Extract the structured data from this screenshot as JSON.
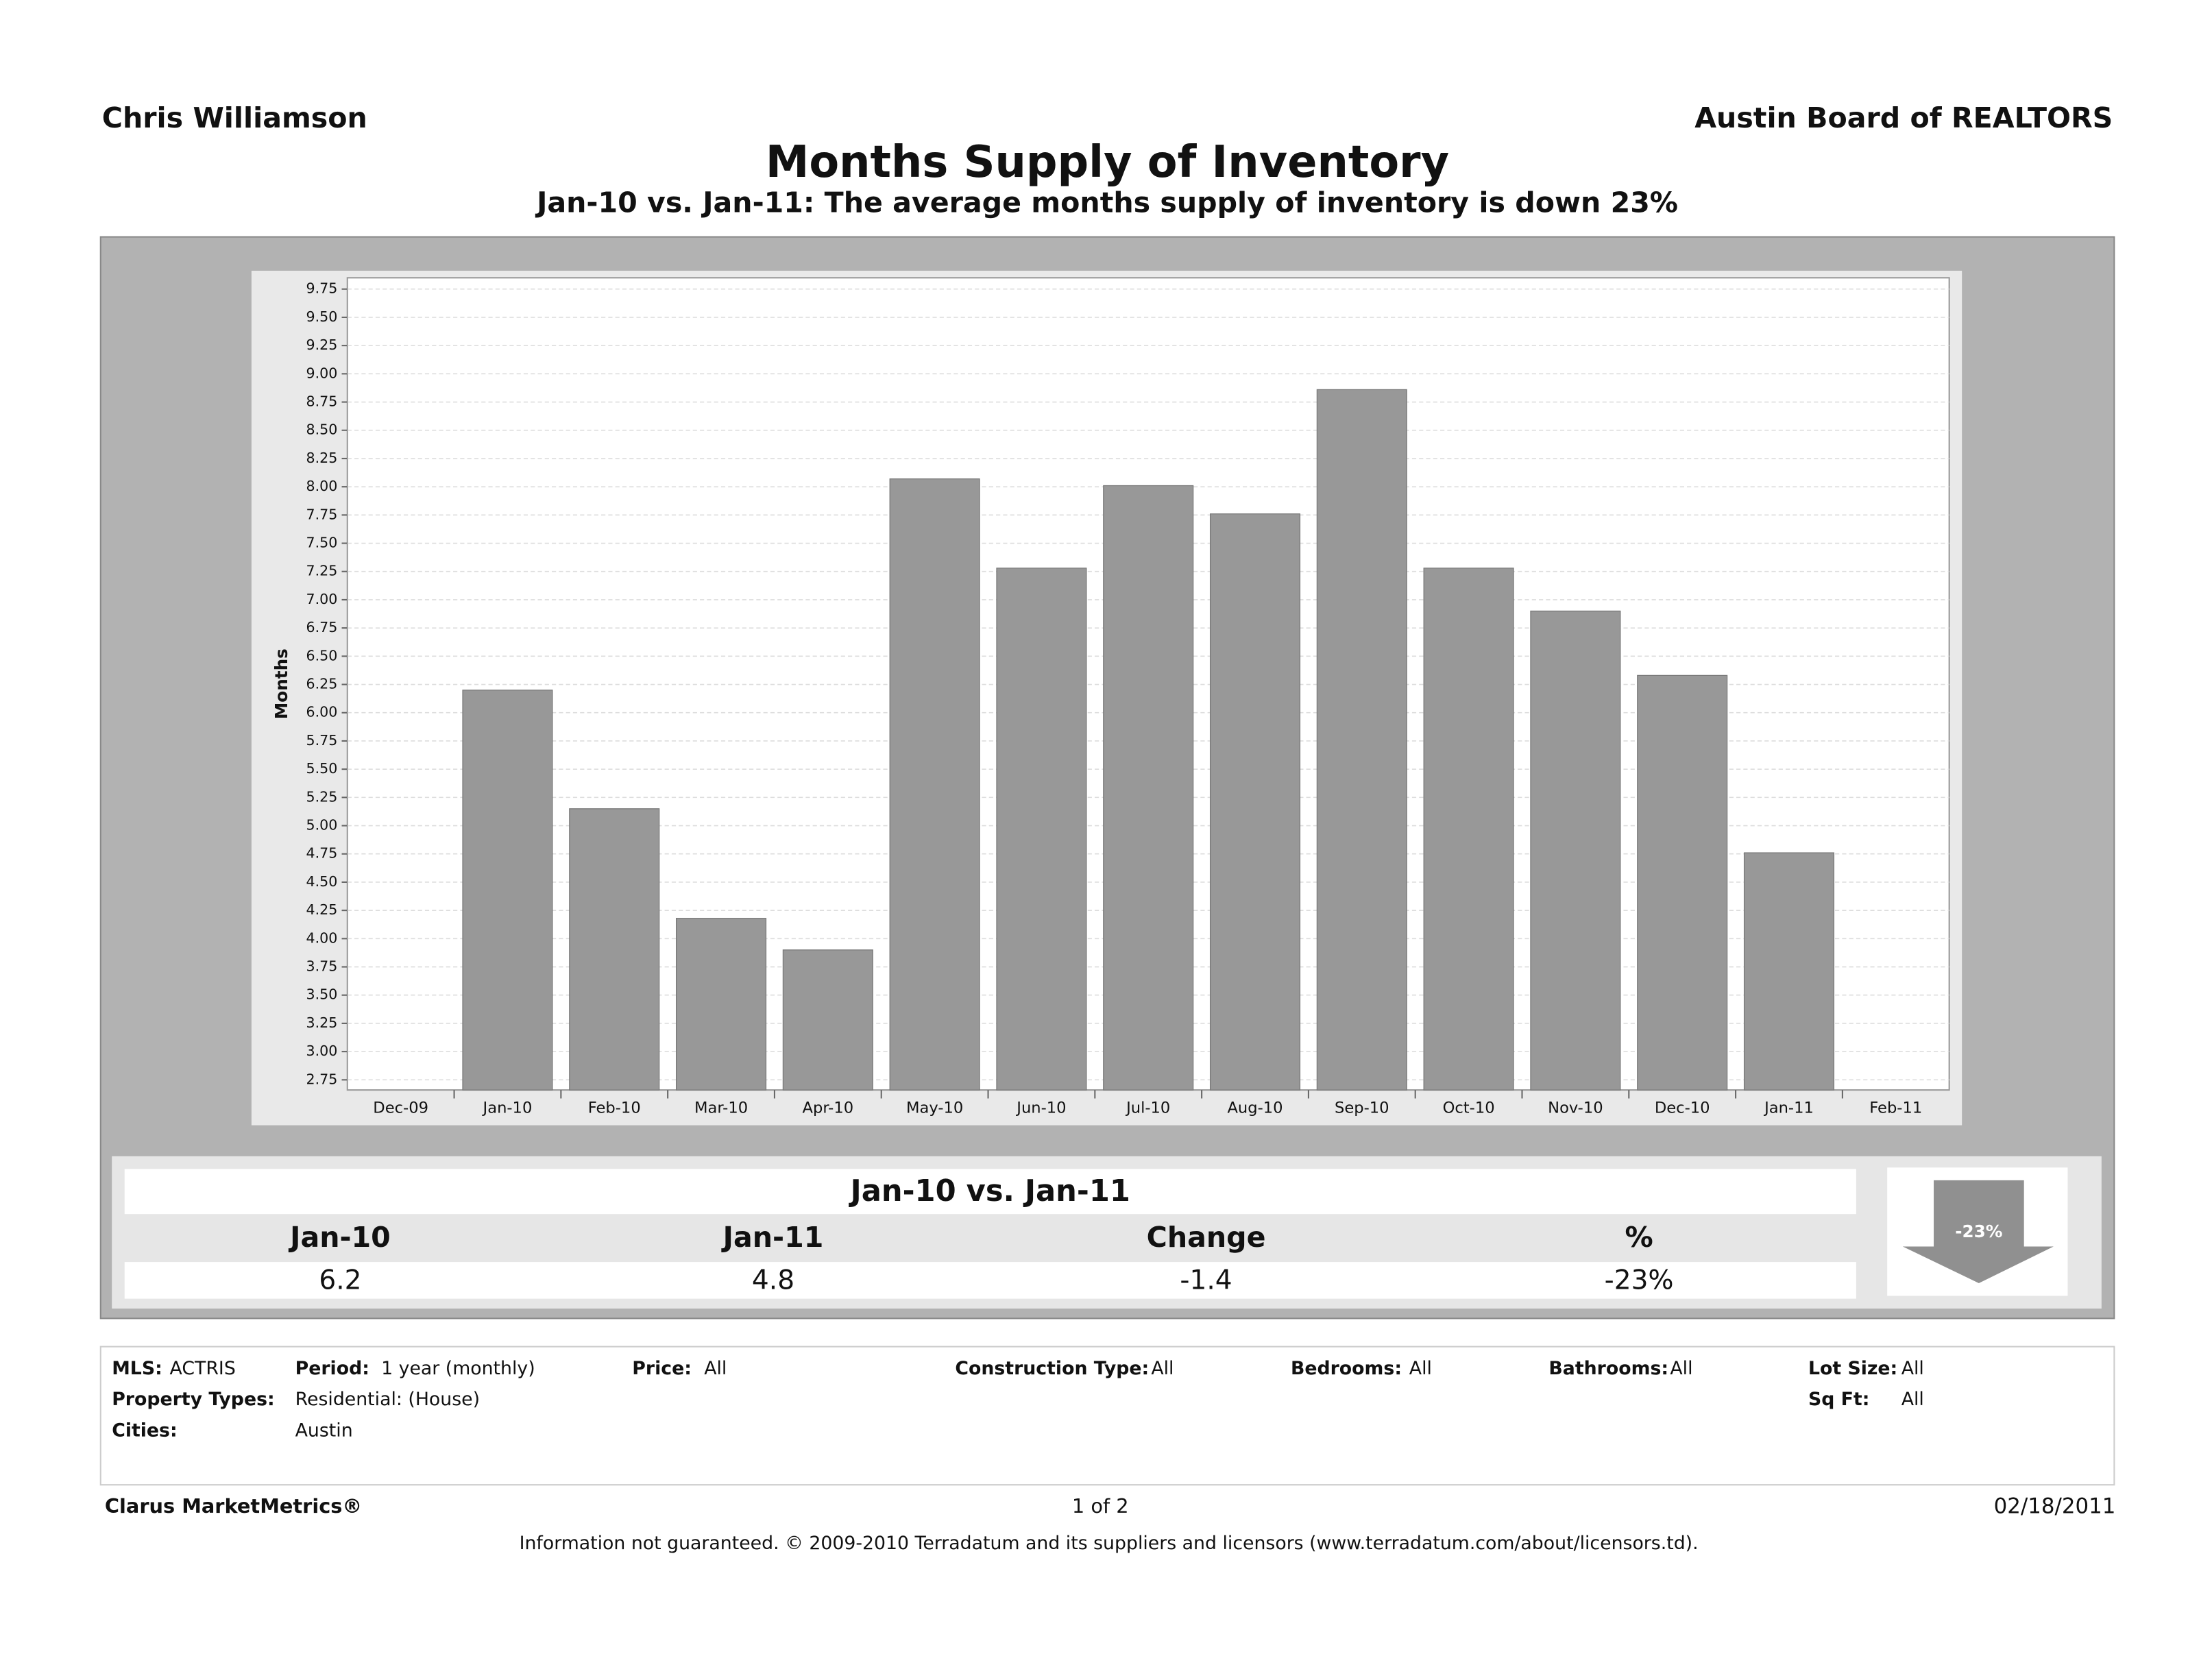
{
  "header": {
    "agent": "Chris Williamson",
    "board": "Austin Board of REALTORS"
  },
  "chart_data": {
    "type": "bar",
    "title": "Months Supply of Inventory",
    "subtitle": "Jan-10 vs. Jan-11:  The average months supply of inventory is down 23%",
    "y_label": "Months",
    "categories": [
      "Dec-09",
      "Jan-10",
      "Feb-10",
      "Mar-10",
      "Apr-10",
      "May-10",
      "Jun-10",
      "Jul-10",
      "Aug-10",
      "Sep-10",
      "Oct-10",
      "Nov-10",
      "Dec-10",
      "Jan-11",
      "Feb-11"
    ],
    "values": [
      null,
      6.2,
      5.15,
      4.18,
      3.9,
      8.07,
      7.28,
      8.01,
      7.76,
      8.86,
      7.28,
      6.9,
      6.33,
      4.76,
      null
    ],
    "color": "#989898",
    "ylim": [
      2.66,
      9.85
    ],
    "yticks": [
      2.75,
      {
        "value": 3,
        "label": "3.00"
      },
      3.25,
      {
        "value": 3.5,
        "label": "3.50"
      },
      3.75,
      {
        "value": 4,
        "label": "4.00"
      },
      4.25,
      {
        "value": 4.5,
        "label": "4.50"
      },
      4.75,
      {
        "value": 5,
        "label": "5.00"
      },
      5.25,
      {
        "value": 5.5,
        "label": "5.50"
      },
      5.75,
      {
        "value": 6,
        "label": "6.00"
      },
      6.25,
      {
        "value": 6.5,
        "label": "6.50"
      },
      6.75,
      {
        "value": 7,
        "label": "7.00"
      },
      7.25,
      {
        "value": 7.5,
        "label": "7.50"
      },
      7.75,
      {
        "value": 8,
        "label": "8.00"
      },
      8.25,
      {
        "value": 8.5,
        "label": "8.50"
      },
      8.75,
      {
        "value": 9,
        "label": "9.00"
      },
      9.25,
      {
        "value": 9.5,
        "label": "9.50"
      },
      9.75
    ],
    "grid": true
  },
  "table": {
    "title": "Jan-10 vs. Jan-11",
    "headers": [
      "Jan-10",
      "Jan-11",
      "Change",
      "%"
    ],
    "values": [
      "6.2",
      "4.8",
      "-1.4",
      "-23%"
    ],
    "arrow_label": "-23%"
  },
  "filters": [
    {
      "label": "MLS:",
      "value": "ACTRIS"
    },
    {
      "label": "Period:",
      "value": "1 year (monthly)"
    },
    {
      "label": "Price:",
      "value": "All"
    },
    {
      "label": "Construction Type:",
      "value": "All"
    },
    {
      "label": "Bedrooms:",
      "value": "All"
    },
    {
      "label": "Bathrooms:",
      "value": "All"
    },
    {
      "label": "Lot Size:",
      "value": "All"
    },
    {
      "label": "Property Types:",
      "value": "Residential: (House)"
    },
    {
      "label": "Sq Ft:",
      "value": "All"
    },
    {
      "label": "Cities:",
      "value": "Austin"
    }
  ],
  "footer": {
    "brand": "Clarus MarketMetrics®",
    "page": "1 of 2",
    "date": "02/18/2011",
    "disclaimer": "Information not guaranteed.  © 2009-2010 Terradatum and its suppliers and licensors (www.terradatum.com/about/licensors.td)."
  }
}
